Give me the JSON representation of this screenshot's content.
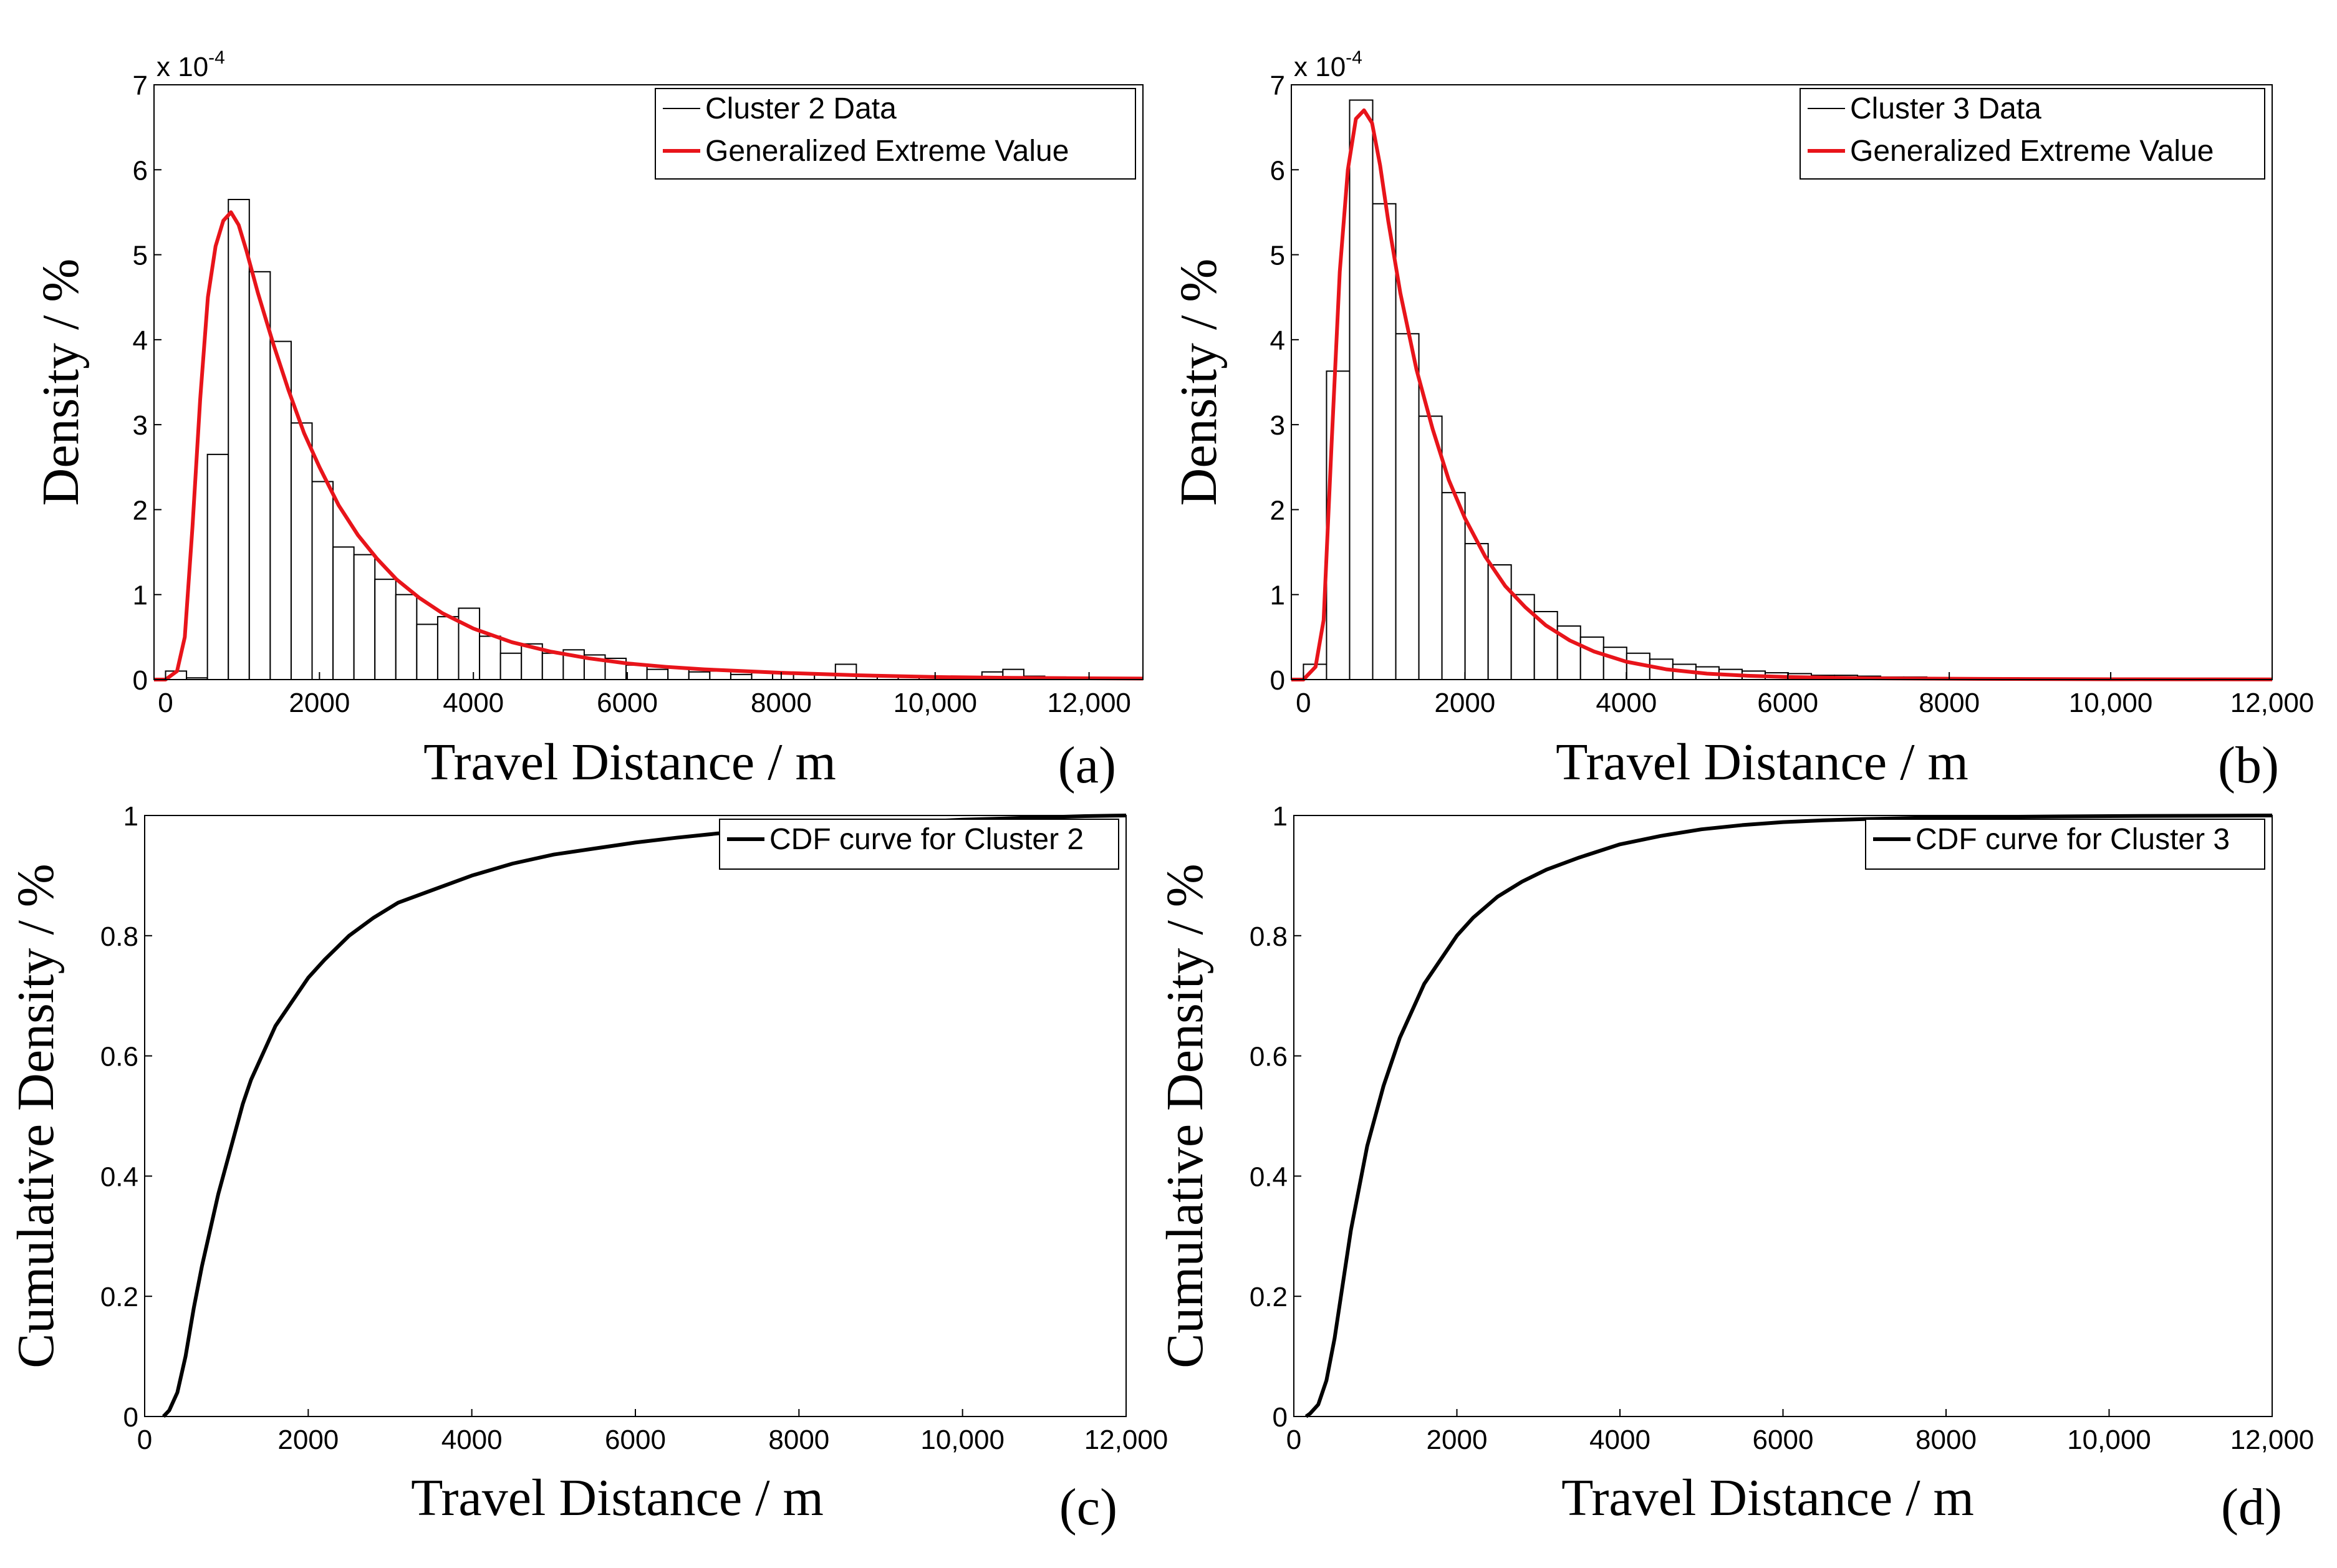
{
  "chart_data": [
    {
      "panel": "(a)",
      "type": "bar",
      "xlabel": "Travel Distance / m",
      "ylabel": "Density / %",
      "xlim": [
        -150,
        12700
      ],
      "ylim": [
        0,
        7
      ],
      "y_scale_label": "x 10",
      "y_scale_exp": "-4",
      "xticks": [
        0,
        2000,
        4000,
        6000,
        8000,
        10000,
        12000
      ],
      "xtick_labels": [
        "0",
        "2000",
        "4000",
        "6000",
        "8000",
        "10,000",
        "12,000"
      ],
      "yticks": [
        0,
        1,
        2,
        3,
        4,
        5,
        6,
        7
      ],
      "ytick_labels": [
        "0",
        "1",
        "2",
        "3",
        "4",
        "5",
        "6",
        "7"
      ],
      "legend": [
        "Cluster 2 Data",
        "Generalized Extreme Value"
      ],
      "legend_position": "top-right",
      "bin_start": 0,
      "bin_width": 272,
      "values": [
        0.1,
        0.02,
        2.65,
        5.65,
        4.8,
        3.98,
        3.02,
        2.33,
        1.56,
        1.47,
        1.18,
        1.0,
        0.65,
        0.74,
        0.84,
        0.51,
        0.31,
        0.42,
        0.31,
        0.35,
        0.29,
        0.25,
        0.17,
        0.12,
        0.14,
        0.09,
        0.1,
        0.06,
        0.08,
        0.07,
        0.07,
        0.06,
        0.18,
        0.05,
        0.04,
        0.04,
        0.03,
        0.03,
        0.03,
        0.09,
        0.12,
        0.04,
        0.03,
        0.02,
        0.02,
        0.02,
        0.02
      ],
      "fit": {
        "name": "Generalized Extreme Value",
        "color": "#e8141a",
        "x": [
          -150,
          0,
          150,
          250,
          350,
          450,
          550,
          650,
          750,
          850,
          950,
          1050,
          1200,
          1400,
          1600,
          1800,
          2000,
          2250,
          2500,
          2750,
          3000,
          3300,
          3600,
          4000,
          4500,
          5000,
          5500,
          6000,
          6500,
          7000,
          7500,
          8000,
          9000,
          10000,
          11000,
          12000,
          12700
        ],
        "y": [
          0,
          0,
          0.1,
          0.5,
          1.8,
          3.3,
          4.5,
          5.1,
          5.4,
          5.5,
          5.35,
          5.05,
          4.55,
          3.95,
          3.4,
          2.9,
          2.5,
          2.05,
          1.7,
          1.42,
          1.18,
          0.96,
          0.78,
          0.6,
          0.44,
          0.33,
          0.25,
          0.19,
          0.15,
          0.12,
          0.1,
          0.08,
          0.05,
          0.03,
          0.02,
          0.015,
          0.012
        ]
      }
    },
    {
      "panel": "(b)",
      "type": "bar",
      "xlabel": "Travel Distance / m",
      "ylabel": "Density / %",
      "xlim": [
        -150,
        12000
      ],
      "ylim": [
        0,
        7
      ],
      "y_scale_label": "x 10",
      "y_scale_exp": "-4",
      "xticks": [
        0,
        2000,
        4000,
        6000,
        8000,
        10000,
        12000
      ],
      "xtick_labels": [
        "0",
        "2000",
        "4000",
        "6000",
        "8000",
        "10,000",
        "12,000"
      ],
      "yticks": [
        0,
        1,
        2,
        3,
        4,
        5,
        6,
        7
      ],
      "ytick_labels": [
        "0",
        "1",
        "2",
        "3",
        "4",
        "5",
        "6",
        "7"
      ],
      "legend": [
        "Cluster 3 Data",
        "Generalized Extreme Value"
      ],
      "legend_position": "top-right",
      "bin_start": 0,
      "bin_width": 286,
      "values": [
        0.18,
        3.63,
        6.82,
        5.6,
        4.07,
        3.1,
        2.2,
        1.6,
        1.35,
        1.0,
        0.8,
        0.63,
        0.5,
        0.38,
        0.31,
        0.24,
        0.18,
        0.15,
        0.12,
        0.1,
        0.08,
        0.07,
        0.05,
        0.05,
        0.04,
        0.03,
        0.03,
        0.02,
        0.02,
        0.02,
        0.02,
        0.01
      ],
      "fit": {
        "name": "Generalized Extreme Value",
        "color": "#e8141a",
        "x": [
          -150,
          0,
          150,
          250,
          350,
          450,
          550,
          650,
          750,
          850,
          950,
          1050,
          1200,
          1400,
          1600,
          1800,
          2000,
          2250,
          2500,
          2750,
          3000,
          3300,
          3600,
          4000,
          4500,
          5000,
          5500,
          6000,
          7000,
          8000,
          9000,
          10000,
          11000,
          12000
        ],
        "y": [
          0,
          0,
          0.15,
          0.7,
          2.8,
          4.8,
          6.0,
          6.6,
          6.7,
          6.55,
          6.05,
          5.4,
          4.55,
          3.65,
          2.95,
          2.35,
          1.9,
          1.45,
          1.1,
          0.85,
          0.64,
          0.46,
          0.33,
          0.21,
          0.12,
          0.07,
          0.045,
          0.03,
          0.015,
          0.01,
          0.006,
          0.004,
          0.003,
          0.002
        ]
      }
    },
    {
      "panel": "(c)",
      "type": "line",
      "xlabel": "Travel Distance / m",
      "ylabel": "Cumulative Density / %",
      "xlim": [
        0,
        12000
      ],
      "ylim": [
        0,
        1
      ],
      "xticks": [
        0,
        2000,
        4000,
        6000,
        8000,
        10000,
        12000
      ],
      "xtick_labels": [
        "0",
        "2000",
        "4000",
        "6000",
        "8000",
        "10,000",
        "12,000"
      ],
      "yticks": [
        0,
        0.2,
        0.4,
        0.6,
        0.8,
        1
      ],
      "ytick_labels": [
        "0",
        "0.2",
        "0.4",
        "0.6",
        "0.8",
        "1"
      ],
      "legend": [
        "CDF curve for Cluster 2"
      ],
      "legend_position": "top-right",
      "series": [
        {
          "name": "CDF curve for Cluster 2",
          "color": "#000000",
          "x": [
            230,
            300,
            400,
            500,
            600,
            700,
            800,
            900,
            1000,
            1100,
            1200,
            1300,
            1400,
            1500,
            1600,
            1800,
            2000,
            2200,
            2500,
            2800,
            3100,
            3500,
            4000,
            4500,
            5000,
            5500,
            6000,
            6500,
            7000,
            7500,
            8000,
            8500,
            9000,
            9500,
            10000,
            10500,
            11000,
            11500,
            12000
          ],
          "y": [
            0.0,
            0.01,
            0.04,
            0.1,
            0.18,
            0.25,
            0.31,
            0.37,
            0.42,
            0.47,
            0.52,
            0.56,
            0.59,
            0.62,
            0.65,
            0.69,
            0.73,
            0.76,
            0.8,
            0.83,
            0.855,
            0.875,
            0.9,
            0.92,
            0.935,
            0.945,
            0.955,
            0.963,
            0.97,
            0.975,
            0.978,
            0.983,
            0.987,
            0.99,
            0.993,
            0.995,
            0.997,
            0.999,
            1.0
          ]
        }
      ]
    },
    {
      "panel": "(d)",
      "type": "line",
      "xlabel": "Travel Distance / m",
      "ylabel": "Cumulative Density / %",
      "xlim": [
        0,
        12000
      ],
      "ylim": [
        0,
        1
      ],
      "xticks": [
        0,
        2000,
        4000,
        6000,
        8000,
        10000,
        12000
      ],
      "xtick_labels": [
        "0",
        "2000",
        "4000",
        "6000",
        "8000",
        "10,000",
        "12,000"
      ],
      "yticks": [
        0,
        0.2,
        0.4,
        0.6,
        0.8,
        1
      ],
      "ytick_labels": [
        "0",
        "0.2",
        "0.4",
        "0.6",
        "0.8",
        "1"
      ],
      "legend": [
        "CDF curve for Cluster 3"
      ],
      "legend_position": "top-right",
      "series": [
        {
          "name": "CDF curve for Cluster 3",
          "color": "#000000",
          "x": [
            150,
            200,
            300,
            400,
            500,
            600,
            700,
            800,
            900,
            1000,
            1100,
            1200,
            1300,
            1400,
            1500,
            1600,
            1800,
            2000,
            2200,
            2500,
            2800,
            3100,
            3500,
            4000,
            4500,
            5000,
            5500,
            6000,
            6500,
            7000,
            8000,
            9000,
            10000,
            11000,
            12000
          ],
          "y": [
            0.0,
            0.005,
            0.02,
            0.06,
            0.13,
            0.22,
            0.31,
            0.38,
            0.45,
            0.5,
            0.55,
            0.59,
            0.63,
            0.66,
            0.69,
            0.72,
            0.76,
            0.8,
            0.83,
            0.865,
            0.89,
            0.91,
            0.93,
            0.952,
            0.966,
            0.977,
            0.984,
            0.989,
            0.992,
            0.994,
            0.997,
            0.998,
            0.999,
            0.9995,
            1.0
          ]
        }
      ]
    }
  ]
}
